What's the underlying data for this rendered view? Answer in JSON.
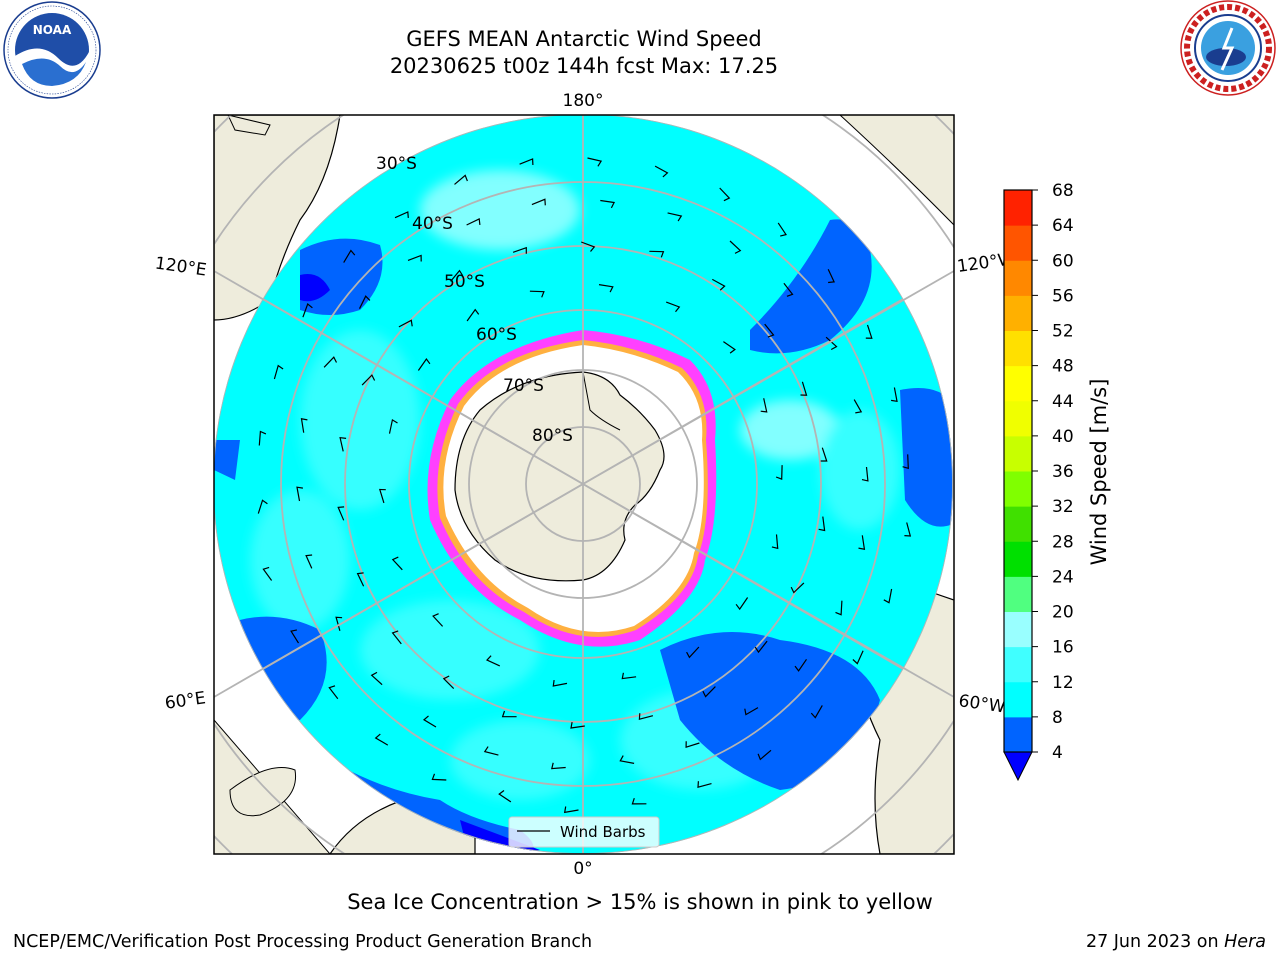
{
  "title": {
    "line1": "GEFS MEAN Antarctic Wind Speed",
    "line2": "20230625 t00z 144h fcst   Max: 17.25"
  },
  "logos": {
    "noaa": {
      "text": "NOAA",
      "icon": "noaa-logo",
      "ring_text": "NATIONAL OCEANIC AND ATMOSPHERIC ADMINISTRATION · U.S. DEPARTMENT OF COMMERCE"
    },
    "nws": {
      "icon": "nws-logo",
      "ring_text": "NATIONAL WEATHER SERVICE"
    }
  },
  "map": {
    "projection": "south-polar-stereographic",
    "longitude_labels": {
      "top": "180°",
      "bottom": "0°",
      "left_upper": "120°E",
      "left_lower": "60°E",
      "right_upper": "120°W",
      "right_lower": "60°W"
    },
    "latitude_labels": [
      "30°S",
      "40°S",
      "50°S",
      "60°S",
      "70°S",
      "80°S"
    ],
    "legend_label": "Wind Barbs",
    "colors": {
      "land": "#eeecdc",
      "ice": "#ffffff",
      "ocean_base": "#00ffff",
      "sea_ice_edge": [
        "#ff40ff",
        "#ffb040"
      ]
    }
  },
  "colorbar": {
    "label": "Wind Speed [m/s]",
    "ticks": [
      "4",
      "8",
      "12",
      "16",
      "20",
      "24",
      "28",
      "32",
      "36",
      "40",
      "44",
      "48",
      "52",
      "56",
      "60",
      "64",
      "68"
    ],
    "colors": [
      "#0064ff",
      "#00ffff",
      "#40ffff",
      "#99ffff",
      "#50ff80",
      "#00e000",
      "#40e000",
      "#80ff00",
      "#c8ff00",
      "#f0ff00",
      "#ffff00",
      "#ffe000",
      "#ffb000",
      "#ff8800",
      "#ff5500",
      "#ff2200",
      "#ff0000"
    ],
    "under_color": "#0000ff"
  },
  "footer": {
    "note": "Sea Ice Concentration > 15% is shown in pink to yellow",
    "left": "NCEP/EMC/Verification Post Processing Product Generation Branch",
    "right_date": "27 Jun 2023 on ",
    "right_host": "Hera"
  }
}
